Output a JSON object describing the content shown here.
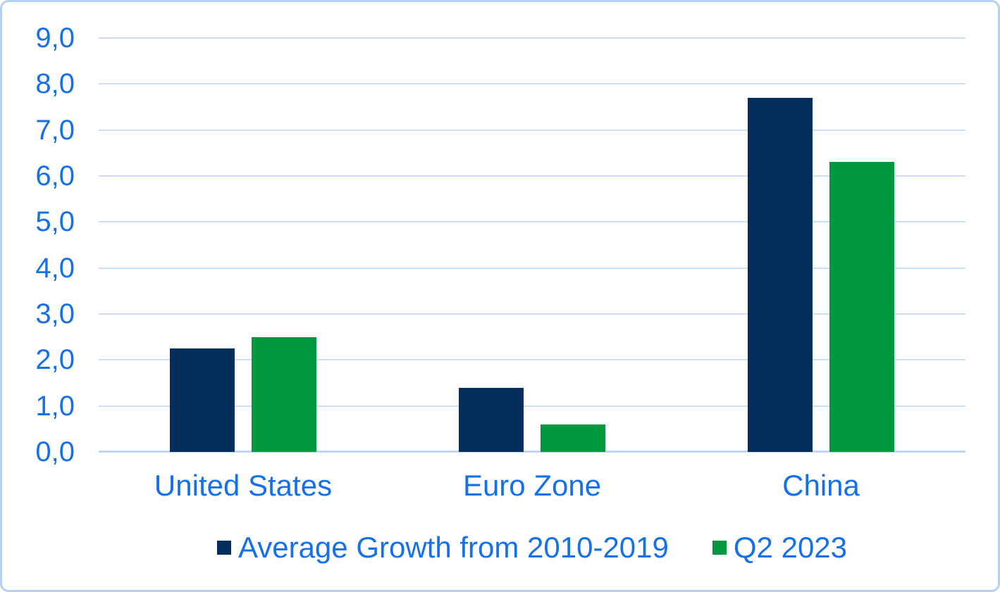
{
  "chart_data": {
    "type": "bar",
    "title": "",
    "xlabel": "",
    "ylabel": "",
    "categories": [
      "United States",
      "Euro Zone",
      "China"
    ],
    "series": [
      {
        "name": "Average Growth from 2010-2019",
        "color": "#032d5a",
        "values": [
          2.25,
          1.4,
          7.7
        ]
      },
      {
        "name": "Q2 2023",
        "color": "#009940",
        "values": [
          2.5,
          0.6,
          6.3
        ]
      }
    ],
    "ylim": [
      0,
      9
    ],
    "ytick_step": 1,
    "ytick_labels": [
      "0,0",
      "1,0",
      "2,0",
      "3,0",
      "4,0",
      "5,0",
      "6,0",
      "7,0",
      "8,0",
      "9,0"
    ],
    "decimal_separator": ",",
    "grid": true,
    "legend_position": "bottom",
    "colors": {
      "tick_text": "#1670e8",
      "gridline": "#cbdff7",
      "axis_line": "#bdd7f4",
      "frame_border": "#b5d1f0",
      "background": "#ffffff"
    }
  }
}
